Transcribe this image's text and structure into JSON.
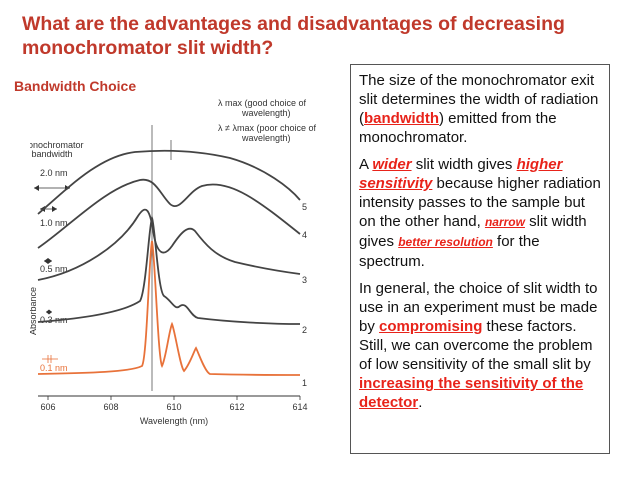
{
  "header": {
    "title": "What are the advantages and disadvantages of decreasing monochromator slit width?",
    "subtitle": "Bandwidth Choice"
  },
  "figure": {
    "bandwidth_header": [
      "Monochromator",
      "bandwidth"
    ],
    "slit_labels": [
      "2.0 nm",
      "1.0 nm",
      "0.5 nm",
      "0.3 nm",
      "0.1 nm"
    ],
    "curve_numbers": [
      "5",
      "4",
      "3",
      "2",
      "1"
    ],
    "lambda_max_label": [
      "λ max (good choice of",
      "wavelength)"
    ],
    "lambda_ne_label": [
      "λ ≠ λmax (poor choice of",
      "wavelength)"
    ],
    "x_ticks": [
      "606",
      "608",
      "610",
      "612",
      "614"
    ],
    "x_label": "Wavelength (nm)",
    "y_label": "Absorbance",
    "colors": {
      "curve": "#444444",
      "highlight": "#e8723a",
      "axis": "#333333"
    }
  },
  "textbox": {
    "p1": {
      "before": "The size of the monochromator exit slit determines the width of radiation (",
      "highlight": "bandwidth",
      "after": ") emitted from the monochromator."
    },
    "p2": {
      "t1": "A ",
      "h1": "wider",
      "t2": " slit width gives ",
      "h2": "higher sensitivity",
      "t3": " because higher radiation intensity passes to the sample but on the other hand, ",
      "h3": "narrow",
      "t4": " slit width gives ",
      "h4": "better resolution",
      "t5": " for the spectrum."
    },
    "p3": {
      "t1": "In general, the choice of slit width to use in an experiment must be made by ",
      "h1": "compromising",
      "t2": " these factors. Still, we can overcome the problem of low sensitivity of the small slit by ",
      "h2": "increasing the sensitivity of the detector",
      "t3": "."
    }
  }
}
